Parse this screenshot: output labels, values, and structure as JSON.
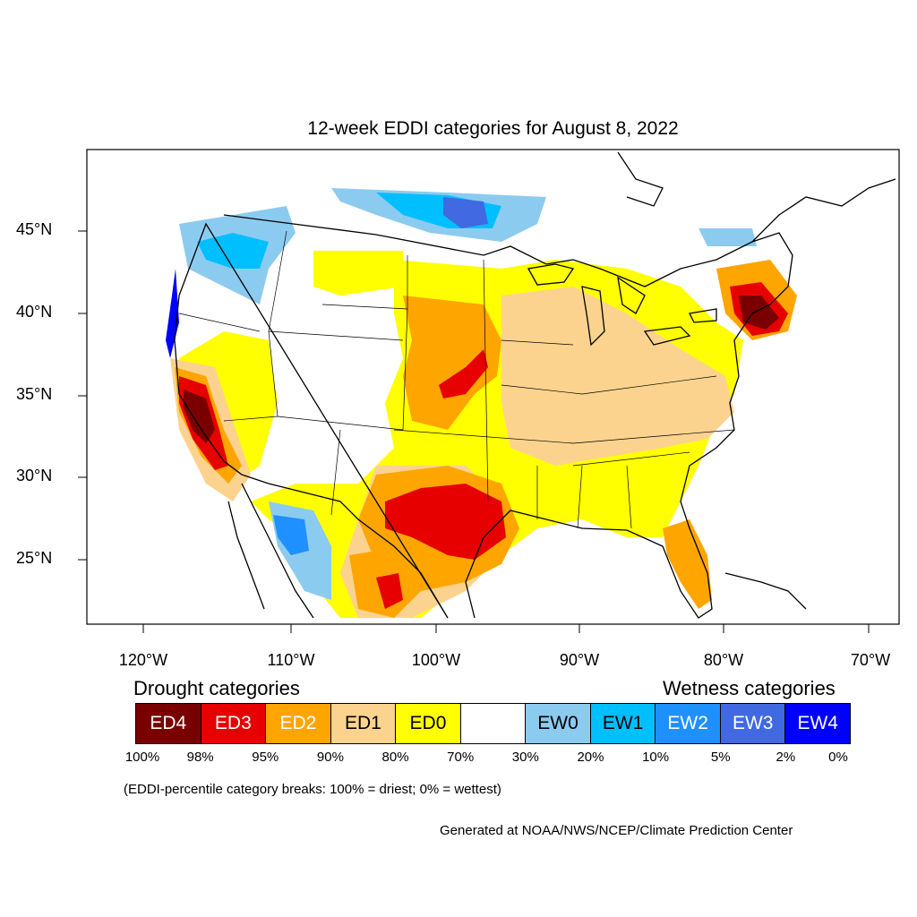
{
  "title": "12-week EDDI categories for August 8, 2022",
  "latitude_labels": [
    "45°N",
    "40°N",
    "35°N",
    "30°N",
    "25°N"
  ],
  "longitude_labels": [
    "120°W",
    "110°W",
    "100°W",
    "90°W",
    "80°W",
    "70°W"
  ],
  "legend": {
    "drought_heading": "Drought categories",
    "wetness_heading": "Wetness categories",
    "categories": [
      {
        "label": "ED4",
        "color": "#7a0000",
        "text_color": "#ffffff"
      },
      {
        "label": "ED3",
        "color": "#e60000",
        "text_color": "#ffffff"
      },
      {
        "label": "ED2",
        "color": "#ffa500",
        "text_color": "#ffffff"
      },
      {
        "label": "ED1",
        "color": "#fcd38e",
        "text_color": "#000000"
      },
      {
        "label": "ED0",
        "color": "#ffff00",
        "text_color": "#000000"
      },
      {
        "label": "",
        "color": "#ffffff",
        "text_color": "#000000"
      },
      {
        "label": "EW0",
        "color": "#8ccbf0",
        "text_color": "#000000"
      },
      {
        "label": "EW1",
        "color": "#00bfff",
        "text_color": "#000000"
      },
      {
        "label": "EW2",
        "color": "#1e90ff",
        "text_color": "#ffffff"
      },
      {
        "label": "EW3",
        "color": "#4169e1",
        "text_color": "#ffffff"
      },
      {
        "label": "EW4",
        "color": "#0000ff",
        "text_color": "#ffffff"
      }
    ],
    "percent_breaks": [
      "100%",
      "98%",
      "95%",
      "90%",
      "80%",
      "70%",
      "30%",
      "20%",
      "10%",
      "5%",
      "2%",
      "0%"
    ]
  },
  "note": "(EDDI-percentile category breaks: 100% = driest; 0% = wettest)",
  "credit": "Generated at NOAA/NWS/NCEP/Climate Prediction Center"
}
